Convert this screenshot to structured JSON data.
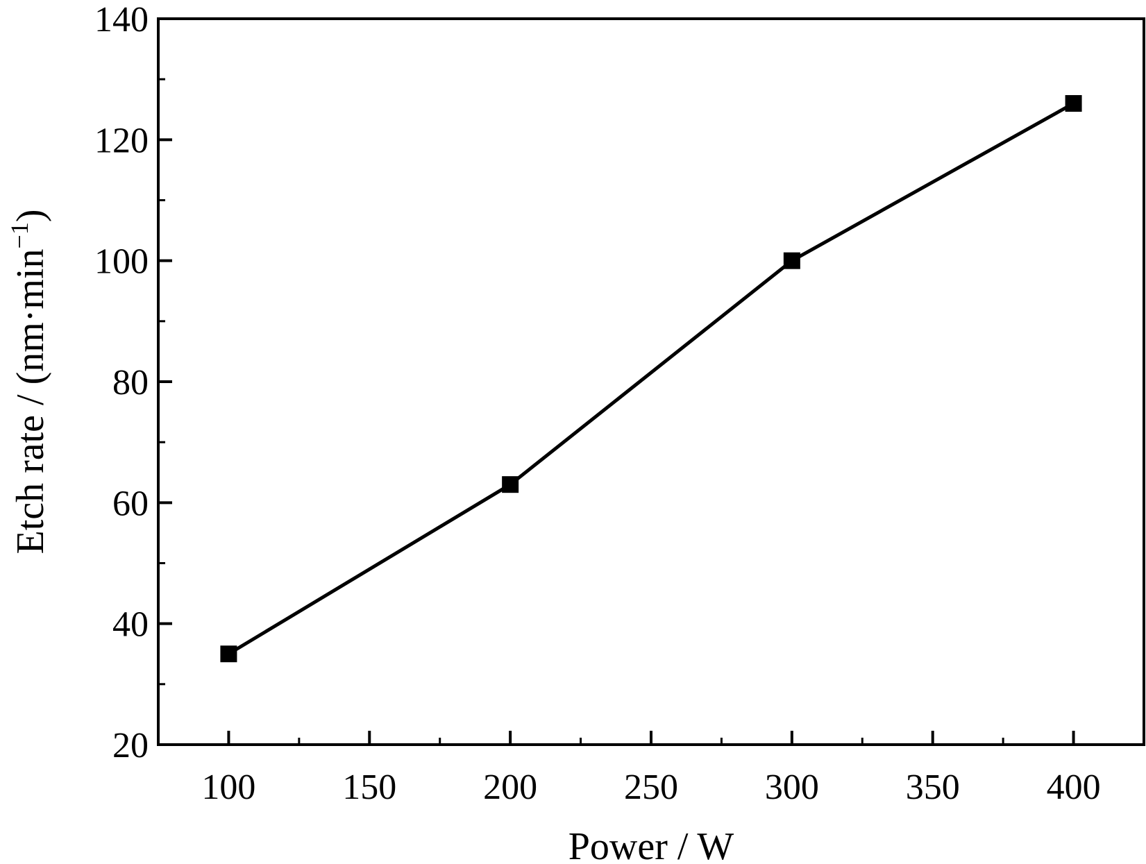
{
  "chart_data": {
    "type": "line",
    "title": "",
    "xlabel": "Power / W",
    "ylabel": {
      "main": "Etch rate / (nm·min",
      "superscript": "−1",
      "close": ")"
    },
    "xlim": [
      75,
      425
    ],
    "ylim": [
      20,
      140
    ],
    "xticks": [
      100,
      150,
      200,
      250,
      300,
      350,
      400
    ],
    "xtick_labels": [
      "100",
      "150",
      "200",
      "250",
      "300",
      "350",
      "400"
    ],
    "yticks": [
      20,
      40,
      60,
      80,
      100,
      120,
      140
    ],
    "ytick_labels": [
      "20",
      "40",
      "60",
      "80",
      "100",
      "120",
      "140"
    ],
    "x_minor_step": 25,
    "y_minor_step": 10,
    "grid": false,
    "series": [
      {
        "marker": "square",
        "color": "#000000",
        "x": [
          100,
          200,
          300,
          400
        ],
        "y": [
          35,
          63,
          100,
          126
        ]
      }
    ]
  }
}
